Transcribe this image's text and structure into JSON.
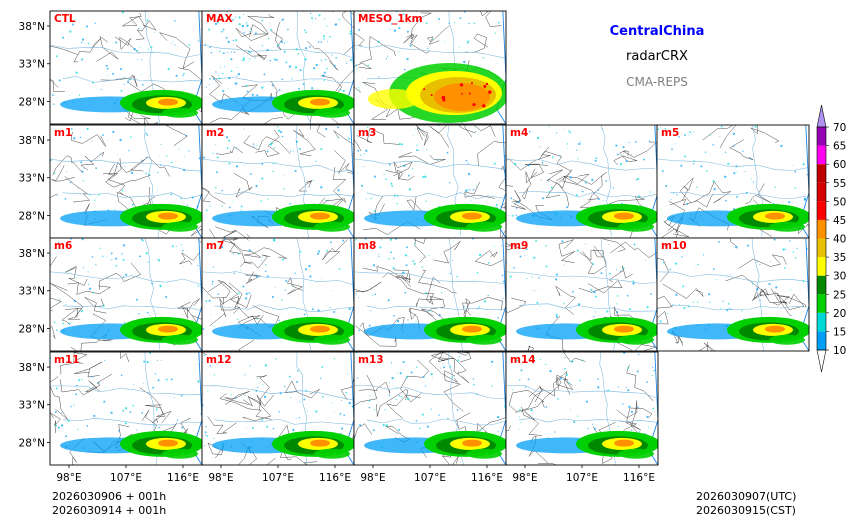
{
  "header": {
    "region": "CentralChina",
    "product": "radarCRX",
    "system": "CMA-REPS"
  },
  "footer": {
    "init_utc": "2026030906  +  001h",
    "init_cst": "2026030914  +  001h",
    "valid_utc": "2026030907(UTC)",
    "valid_cst": "2026030915(CST)"
  },
  "chart_data": {
    "type": "heatmap",
    "title": "radarCRX",
    "region": "CentralChina",
    "system": "CMA-REPS",
    "panels": [
      {
        "label": "CTL"
      },
      {
        "label": "MAX"
      },
      {
        "label": "MESO_1km"
      },
      {
        "label": "m1"
      },
      {
        "label": "m2"
      },
      {
        "label": "m3"
      },
      {
        "label": "m4"
      },
      {
        "label": "m5"
      },
      {
        "label": "m6"
      },
      {
        "label": "m7"
      },
      {
        "label": "m8"
      },
      {
        "label": "m9"
      },
      {
        "label": "m10"
      },
      {
        "label": "m11"
      },
      {
        "label": "m12"
      },
      {
        "label": "m13"
      },
      {
        "label": "m14"
      }
    ],
    "y_ticks": [
      "38°N",
      "33°N",
      "28°N"
    ],
    "y_tick_values": [
      38,
      33,
      28
    ],
    "x_ticks": [
      "98°E",
      "107°E",
      "116°E"
    ],
    "x_tick_values": [
      98,
      107,
      116
    ],
    "xlim": [
      95,
      119
    ],
    "ylim": [
      25,
      40
    ],
    "colorbar": {
      "ticks": [
        "10",
        "15",
        "20",
        "25",
        "30",
        "35",
        "40",
        "45",
        "50",
        "55",
        "60",
        "65",
        "70"
      ],
      "tick_values": [
        10,
        15,
        20,
        25,
        30,
        35,
        40,
        45,
        50,
        55,
        60,
        65,
        70
      ],
      "colors": [
        "#009ff5",
        "#00d8d8",
        "#00d000",
        "#008800",
        "#ffff00",
        "#e8c000",
        "#ff9000",
        "#ff0000",
        "#d60000",
        "#c00000",
        "#ff00f0",
        "#9600b4",
        "#ad90f0"
      ],
      "extend": "both"
    }
  }
}
